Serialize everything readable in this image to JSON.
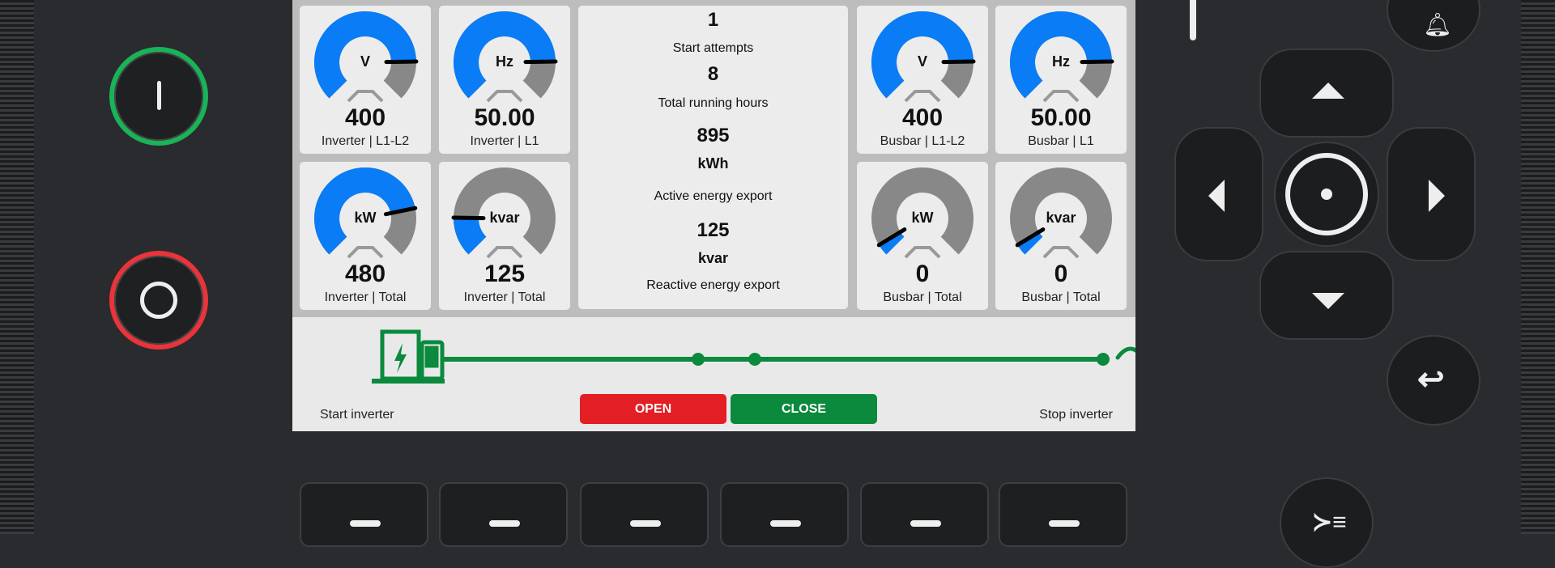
{
  "gauges_left": [
    {
      "unit": "V",
      "value": "400",
      "label": "Inverter | L1-L2",
      "fill": 0.83
    },
    {
      "unit": "Hz",
      "value": "50.00",
      "label": "Inverter | L1",
      "fill": 0.83
    },
    {
      "unit": "kW",
      "value": "480",
      "label": "Inverter | Total",
      "fill": 0.79
    },
    {
      "unit": "kvar",
      "value": "125",
      "label": "Inverter | Total",
      "fill": 0.17
    }
  ],
  "gauges_right": [
    {
      "unit": "V",
      "value": "400",
      "label": "Busbar | L1-L2",
      "fill": 0.83
    },
    {
      "unit": "Hz",
      "value": "50.00",
      "label": "Busbar | L1",
      "fill": 0.83
    },
    {
      "unit": "kW",
      "value": "0",
      "label": "Busbar | Total",
      "fill": 0.05
    },
    {
      "unit": "kvar",
      "value": "0",
      "label": "Busbar | Total",
      "fill": 0.05
    }
  ],
  "center": {
    "value1": "1",
    "label1": "Start attempts",
    "value2": "8",
    "label2": "Total running hours",
    "value3": "895",
    "unit3": "kWh",
    "label3": "Active energy export",
    "value4": "125",
    "unit4": "kvar",
    "label4": "Reactive energy export"
  },
  "bottom": {
    "start_label": "Start inverter",
    "stop_label": "Stop inverter",
    "open_label": "OPEN",
    "close_label": "CLOSE"
  },
  "colors": {
    "gauge_fill": "#0a7cf5",
    "gauge_track": "#888888",
    "line_green": "#0b8a3e",
    "open_red": "#e31e24",
    "close_green": "#0b8a3e",
    "start_ring": "#19b35a",
    "stop_ring": "#e8343a"
  }
}
